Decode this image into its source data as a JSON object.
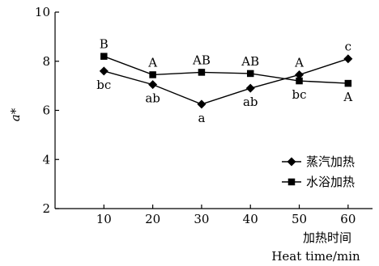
{
  "chart_data": {
    "type": "line",
    "title": "",
    "xlabel": "加热时间",
    "xlabel_en": "Heat time/min",
    "ylabel": "a*",
    "x": [
      10,
      20,
      30,
      40,
      50,
      60
    ],
    "xticks": [
      "10",
      "20",
      "30",
      "40",
      "50",
      "60"
    ],
    "yticks": [
      "2",
      "4",
      "6",
      "8",
      "10"
    ],
    "xlim": [
      0,
      65
    ],
    "ylim": [
      2,
      10
    ],
    "grid": false,
    "legend_position": "right",
    "series": [
      {
        "name": "蒸汽加热",
        "marker": "diamond",
        "values": [
          7.6,
          7.05,
          6.25,
          6.9,
          7.45,
          8.1
        ],
        "labels": [
          "bc",
          "ab",
          "a",
          "ab",
          "A",
          "c"
        ],
        "label_position": [
          "below",
          "below",
          "below",
          "below",
          "above",
          "above"
        ]
      },
      {
        "name": "水浴加热",
        "marker": "square",
        "values": [
          8.2,
          7.45,
          7.55,
          7.5,
          7.2,
          7.1
        ],
        "labels": [
          "B",
          "A",
          "AB",
          "AB",
          "bc",
          "A"
        ],
        "label_position": [
          "above",
          "above",
          "above",
          "above",
          "below",
          "below"
        ]
      }
    ],
    "colors": {
      "ink": "#000000"
    }
  }
}
